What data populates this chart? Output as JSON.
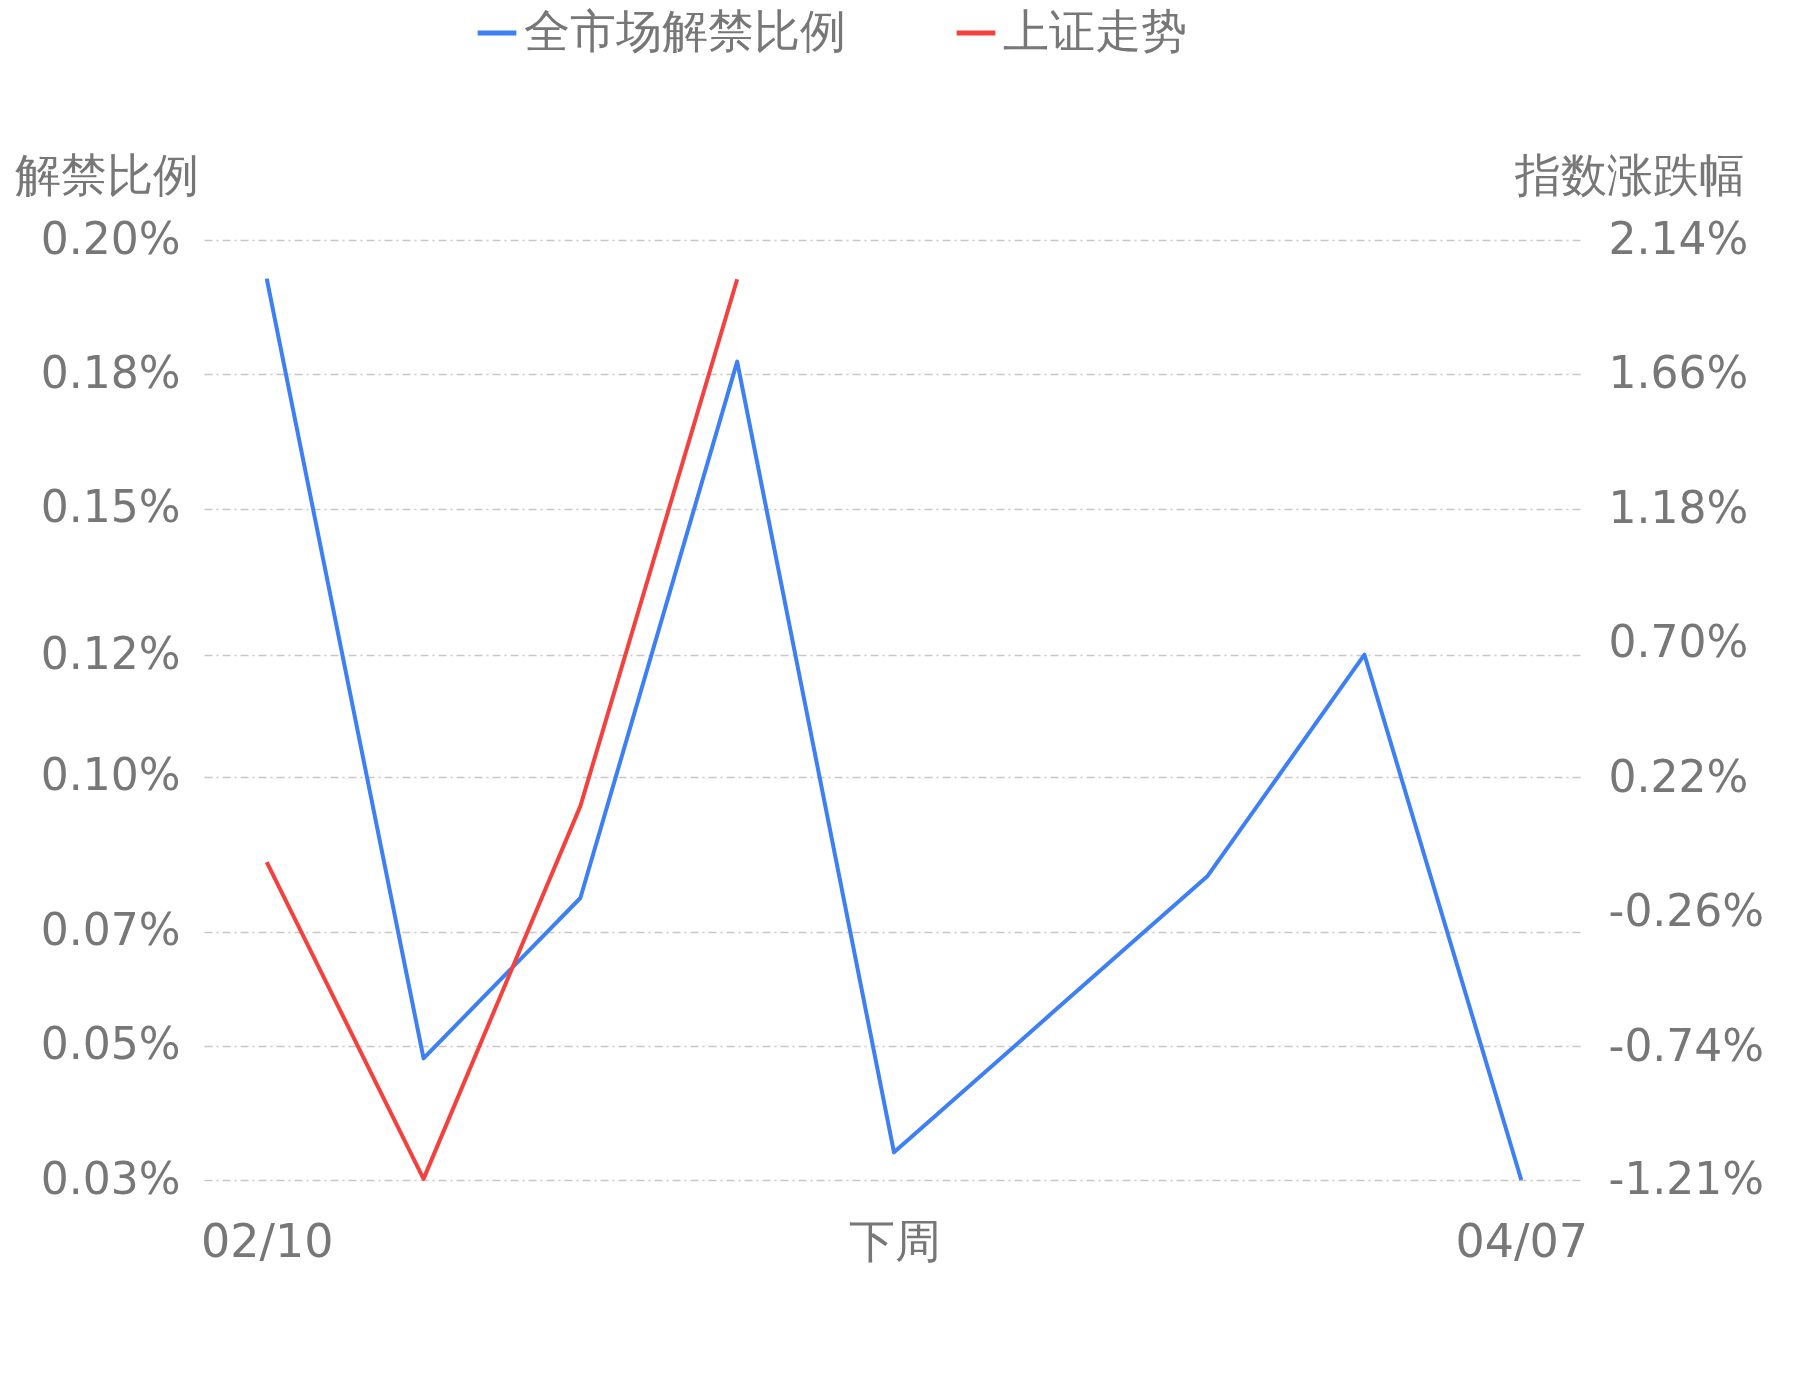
{
  "chart_data": {
    "type": "line",
    "categories": [
      "02/10",
      null,
      null,
      null,
      "下周",
      null,
      null,
      null,
      "04/07"
    ],
    "ylabel": "解禁比例",
    "y2label": "指数涨跌幅",
    "ylim": [
      0.03,
      0.2
    ],
    "yticks": [
      {
        "value": 0.03,
        "label": "0.03%"
      },
      {
        "value": 0.0543,
        "label": "0.05%"
      },
      {
        "value": 0.0749,
        "label": "0.07%"
      },
      {
        "value": 0.1029,
        "label": "0.10%"
      },
      {
        "value": 0.1249,
        "label": "0.12%"
      },
      {
        "value": 0.1514,
        "label": "0.15%"
      },
      {
        "value": 0.1757,
        "label": "0.18%"
      },
      {
        "value": 0.2,
        "label": "0.20%"
      }
    ],
    "y2lim": [
      -1.214,
      2.14
    ],
    "y2ticks": [
      {
        "value": -1.214,
        "label": "-1.21%"
      },
      {
        "value": -0.74,
        "label": "-0.74%"
      },
      {
        "value": -0.26,
        "label": "-0.26%"
      },
      {
        "value": 0.22,
        "label": "0.22%"
      },
      {
        "value": 0.7,
        "label": "0.70%"
      },
      {
        "value": 1.18,
        "label": "1.18%"
      },
      {
        "value": 1.66,
        "label": "1.66%"
      },
      {
        "value": 2.14,
        "label": "2.14%"
      }
    ],
    "series": [
      {
        "name": "全市场解禁比例",
        "color": "#3d7ff5",
        "values": [
          0.193,
          0.052,
          0.081,
          0.178,
          0.035,
          0.06,
          0.085,
          0.125,
          0.03
        ]
      },
      {
        "name": "上证走势",
        "color": "#f5413d",
        "axis": "y2",
        "values": [
          -0.08,
          -1.21,
          0.12,
          2.0,
          null,
          null,
          null,
          null,
          null
        ]
      }
    ],
    "grid": "y",
    "legend": "top",
    "line_style": "solid",
    "marker": "none"
  }
}
